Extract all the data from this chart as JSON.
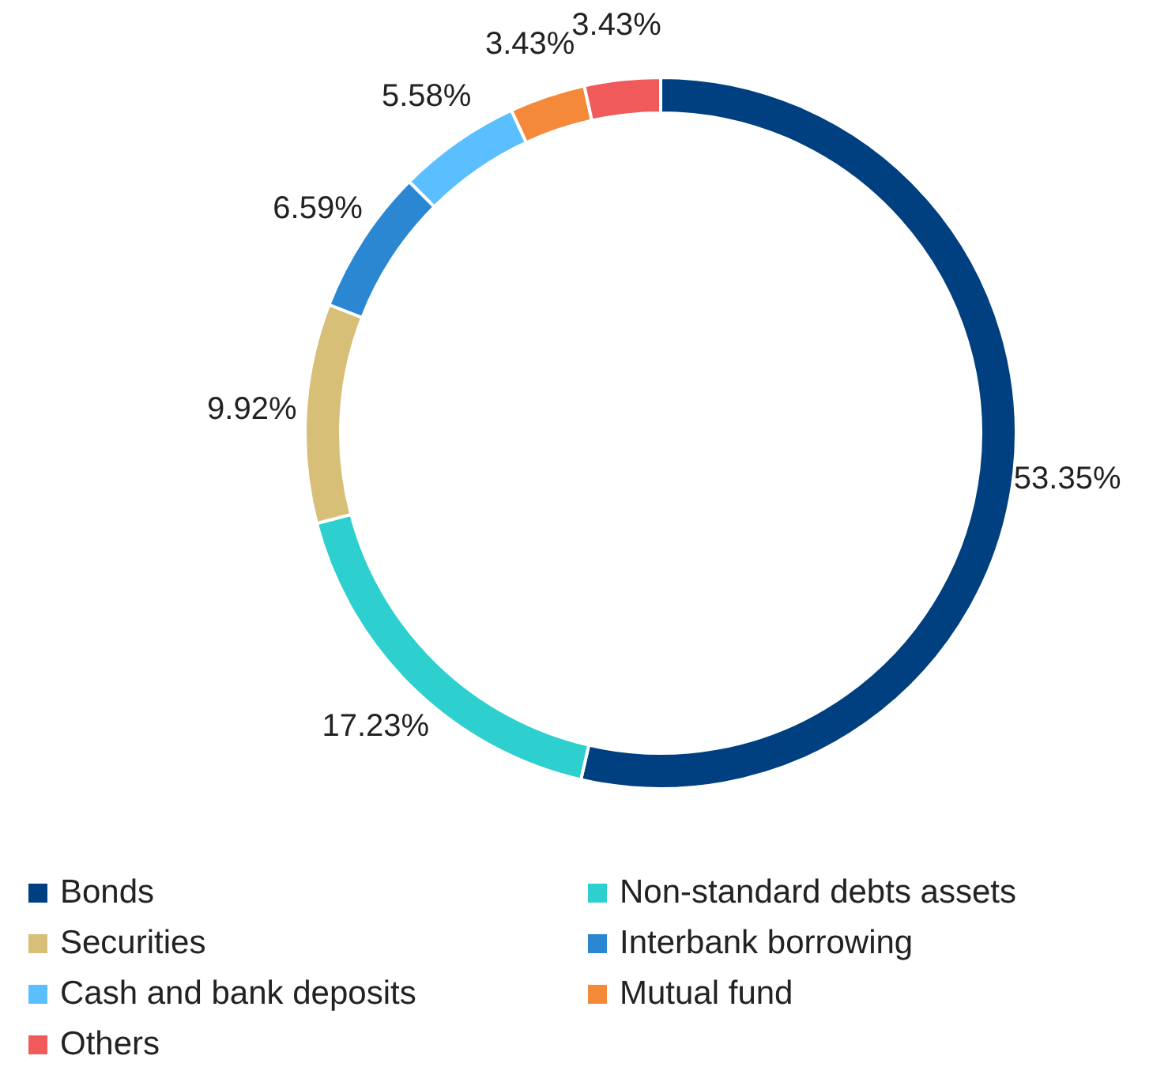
{
  "chart_data": {
    "type": "donut",
    "categories": [
      "Bonds",
      "Non-standard debts assets",
      "Securities",
      "Interbank borrowing",
      "Cash and bank deposits",
      "Mutual fund",
      "Others"
    ],
    "values": [
      53.35,
      17.23,
      9.92,
      6.59,
      5.58,
      3.43,
      3.43
    ],
    "colors": [
      "#004080",
      "#2ecfcf",
      "#d7bf78",
      "#2b87d1",
      "#5bbfff",
      "#f4893a",
      "#f05a5a"
    ],
    "value_labels": [
      "53.35%",
      "17.23%",
      "9.92%",
      "6.59%",
      "5.58%",
      "3.43%",
      "3.43%"
    ],
    "legend": "bottom"
  }
}
